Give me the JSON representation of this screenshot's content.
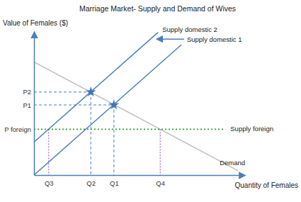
{
  "chart_data": {
    "type": "line",
    "title": "Marriage Market- Supply and Demand of Wives",
    "xlabel": "Quantity of Females",
    "ylabel": "Value of Females ($)",
    "xlim": [
      0,
      100
    ],
    "ylim": [
      0,
      100
    ],
    "xticks": [
      {
        "value": 7,
        "label": "Q3"
      },
      {
        "value": 27,
        "label": "Q2"
      },
      {
        "value": 38,
        "label": "Q1"
      },
      {
        "value": 60,
        "label": "Q4"
      }
    ],
    "yticks": [
      {
        "value": 32,
        "label": "P foreign"
      },
      {
        "value": 49,
        "label": "P1"
      },
      {
        "value": 58,
        "label": "P2"
      }
    ],
    "grid": false,
    "series": [
      {
        "name": "Demand",
        "color": "#bdbdbd",
        "line_style": "solid",
        "x": [
          0,
          97
        ],
        "values": [
          79,
          3
        ]
      },
      {
        "name": "Supply domestic 1",
        "color": "#4a7ebb",
        "line_style": "solid",
        "x": [
          0,
          70
        ],
        "values": [
          0,
          91
        ]
      },
      {
        "name": "Supply domestic 2",
        "color": "#4a7ebb",
        "line_style": "solid",
        "x": [
          0,
          59
        ],
        "values": [
          23,
          99.7
        ]
      },
      {
        "name": "Supply foreign",
        "color": "#2e9e2e",
        "line_style": "dotted",
        "x": [
          0,
          91
        ],
        "values": [
          32,
          32
        ]
      }
    ]
  }
}
